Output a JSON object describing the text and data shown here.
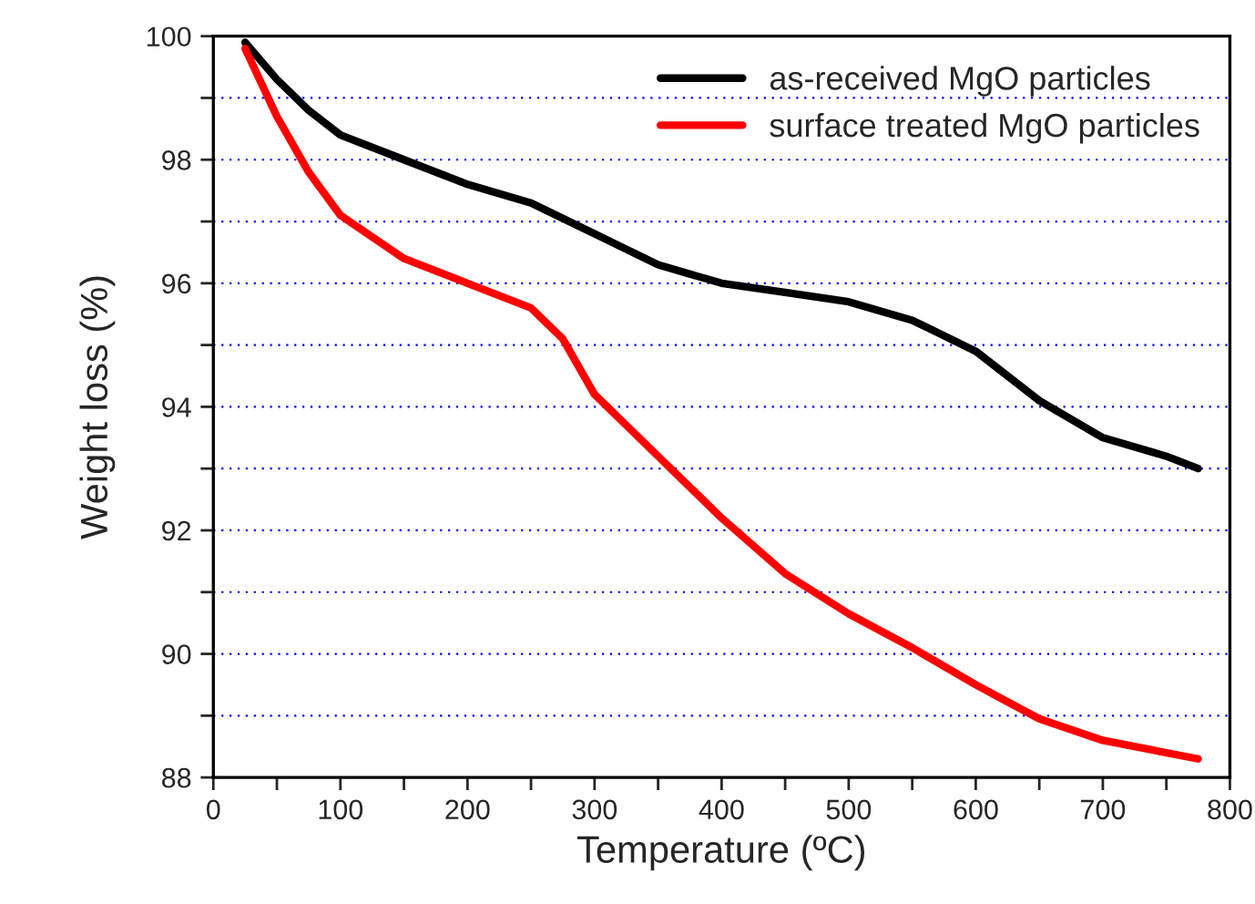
{
  "chart_data": {
    "type": "line",
    "xlabel": "Temperature (ºC)",
    "ylabel": "Weight loss (%)",
    "xlim": [
      0,
      800
    ],
    "ylim": [
      88,
      100
    ],
    "xticks": [
      0,
      {
        "value": 50,
        "label": null
      },
      100,
      {
        "value": 150,
        "label": null
      },
      200,
      {
        "value": 250,
        "label": null
      },
      300,
      {
        "value": 350,
        "label": null
      },
      400,
      {
        "value": 450,
        "label": null
      },
      500,
      {
        "value": 550,
        "label": null
      },
      600,
      {
        "value": 650,
        "label": null
      },
      700,
      {
        "value": 750,
        "label": null
      },
      800
    ],
    "yticks": [
      88,
      {
        "value": 89,
        "label": null
      },
      90,
      {
        "value": 91,
        "label": null
      },
      92,
      {
        "value": 93,
        "label": null
      },
      94,
      {
        "value": 95,
        "label": null
      },
      96,
      {
        "value": 97,
        "label": null
      },
      98,
      {
        "value": 99,
        "label": null
      },
      100
    ],
    "grid": "y",
    "legend": "top right",
    "line_style": "solid",
    "marker": "none",
    "series": [
      {
        "name": "as-received MgO particles",
        "color": "#000000",
        "x": [
          25,
          50,
          75,
          100,
          150,
          200,
          250,
          300,
          350,
          400,
          450,
          500,
          550,
          600,
          650,
          700,
          750,
          775
        ],
        "values": [
          99.9,
          99.3,
          98.8,
          98.4,
          98.0,
          97.6,
          97.3,
          96.8,
          96.3,
          96.0,
          95.85,
          95.7,
          95.4,
          94.9,
          94.1,
          93.5,
          93.2,
          93.0
        ]
      },
      {
        "name": "surface treated MgO particles",
        "color": "#ff0000",
        "x": [
          25,
          50,
          75,
          100,
          150,
          200,
          250,
          275,
          300,
          350,
          400,
          450,
          500,
          550,
          600,
          650,
          700,
          775
        ],
        "values": [
          99.8,
          98.7,
          97.8,
          97.1,
          96.4,
          96.0,
          95.6,
          95.1,
          94.2,
          93.2,
          92.2,
          91.3,
          90.65,
          90.1,
          89.5,
          88.95,
          88.6,
          88.3
        ]
      }
    ]
  }
}
